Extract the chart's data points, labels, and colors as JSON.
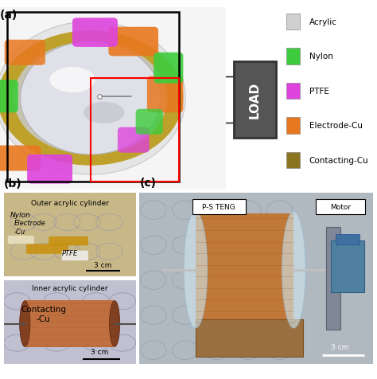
{
  "panel_a_label": "(a)",
  "panel_b_label": "(b)",
  "panel_c_label": "(c)",
  "legend_items": [
    {
      "label": "Acrylic",
      "color": "#d0d0d0"
    },
    {
      "label": "Nylon",
      "color": "#3dcc3d"
    },
    {
      "label": "PTFE",
      "color": "#dd44dd"
    },
    {
      "label": "Electrode-Cu",
      "color": "#e87820"
    },
    {
      "label": "Contacting-Cu",
      "color": "#8b7520"
    }
  ],
  "load_box_text": "LOAD",
  "panel_b_top_title": "Outer acrylic cylinder",
  "panel_b_top_labels": [
    "Nylon",
    "Electrode\n-Cu",
    "PTFE"
  ],
  "panel_b_top_scale": "3 cm",
  "panel_b_bottom_title": "Inner acrylic cylinder",
  "panel_b_bottom_label": "Contacting\n-Cu",
  "panel_b_bottom_scale": "3 cm",
  "panel_c_title": "P-S TENG",
  "panel_c_motor": "Motor",
  "panel_c_scale": "3 cm",
  "bg_color": "#ffffff",
  "sphere_outer_color": "#c8c8c8",
  "sphere_inner_color": "#e0e0e8",
  "sphere_ring_color": "#b8960a",
  "sphere_orange_color": "#e87820",
  "sphere_green_color": "#3dcc3d",
  "sphere_purple_color": "#dd44dd",
  "panel_b_top_bg": "#c8b090",
  "panel_b_top_disk_color": "#d0c8a0",
  "panel_b_bottom_bg": "#b0b0c0",
  "panel_b_bottom_cylinder_color": "#c07040",
  "panel_c_bg_color": "#b8c0c8",
  "panel_c_cylinder_color": "#c87838",
  "panel_c_motor_color": "#5080a0"
}
